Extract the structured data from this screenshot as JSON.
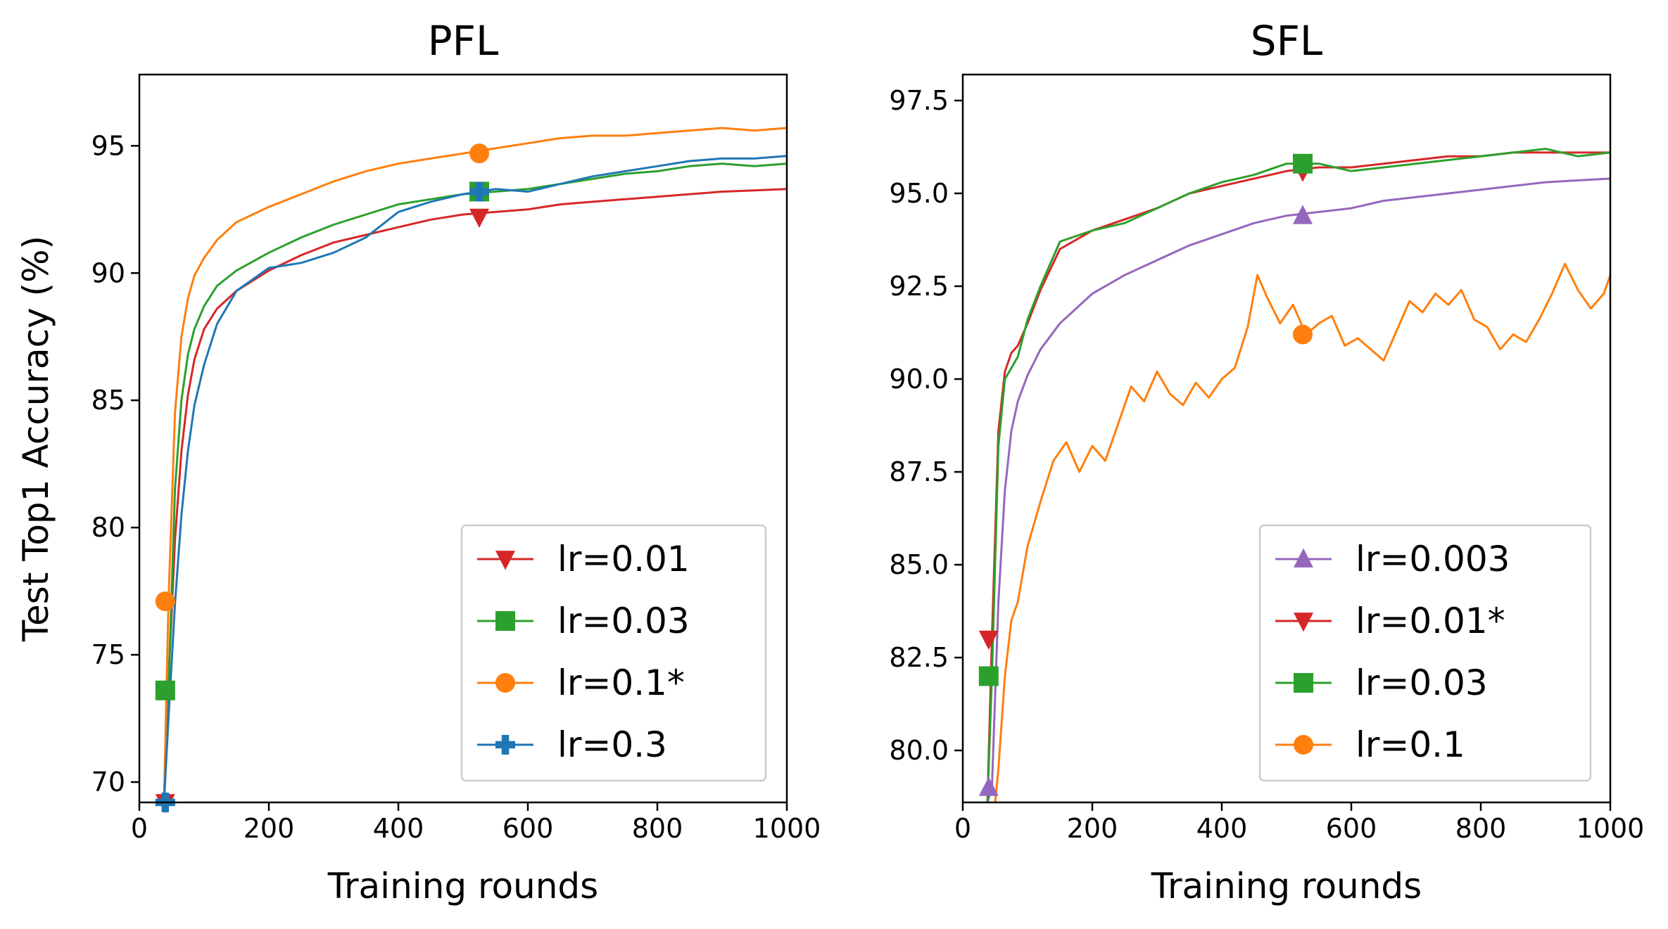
{
  "chart_data": [
    {
      "type": "line",
      "title": "PFL",
      "xlabel": "Training rounds",
      "ylabel": "Test Top1 Accuracy (%)",
      "xlim": [
        0,
        1000
      ],
      "ylim": [
        69.2,
        97.8
      ],
      "xticks": [
        0,
        200,
        400,
        600,
        800,
        1000
      ],
      "xtick_labels": [
        "0",
        "200",
        "400",
        "600",
        "800",
        "1000"
      ],
      "yticks": [
        70,
        75,
        80,
        85,
        90,
        95
      ],
      "ytick_labels": [
        "70",
        "75",
        "80",
        "85",
        "90",
        "95"
      ],
      "legend_position": "lower-right",
      "series": [
        {
          "name": "lr=0.01",
          "color": "#d62728",
          "marker": "triangle-down",
          "marker_points": [
            [
              40,
              69.2
            ],
            [
              525,
              92.2
            ]
          ],
          "x": [
            38,
            45,
            55,
            65,
            75,
            85,
            100,
            120,
            150,
            200,
            250,
            300,
            350,
            400,
            450,
            500,
            550,
            600,
            650,
            700,
            750,
            800,
            850,
            900,
            950,
            1000
          ],
          "y": [
            69.2,
            74.0,
            79.5,
            83.0,
            85.2,
            86.6,
            87.8,
            88.6,
            89.3,
            90.1,
            90.7,
            91.2,
            91.5,
            91.8,
            92.1,
            92.3,
            92.4,
            92.5,
            92.7,
            92.8,
            92.9,
            93.0,
            93.1,
            93.2,
            93.25,
            93.3
          ]
        },
        {
          "name": "lr=0.03",
          "color": "#2ca02c",
          "marker": "square",
          "marker_points": [
            [
              40,
              73.6
            ],
            [
              525,
              93.2
            ]
          ],
          "x": [
            38,
            45,
            55,
            65,
            75,
            85,
            100,
            120,
            150,
            200,
            250,
            300,
            350,
            400,
            450,
            500,
            550,
            600,
            650,
            700,
            750,
            800,
            850,
            900,
            950,
            1000
          ],
          "y": [
            69.2,
            73.6,
            81.5,
            85.0,
            86.8,
            87.8,
            88.7,
            89.5,
            90.1,
            90.8,
            91.4,
            91.9,
            92.3,
            92.7,
            92.9,
            93.1,
            93.2,
            93.3,
            93.5,
            93.7,
            93.9,
            94.0,
            94.2,
            94.3,
            94.2,
            94.3
          ]
        },
        {
          "name": "lr=0.1*",
          "color": "#ff7f0e",
          "marker": "circle",
          "marker_points": [
            [
              40,
              77.1
            ],
            [
              525,
              94.7
            ]
          ],
          "x": [
            38,
            45,
            55,
            65,
            75,
            85,
            100,
            120,
            150,
            200,
            250,
            300,
            350,
            400,
            450,
            500,
            550,
            600,
            650,
            700,
            750,
            800,
            850,
            900,
            950,
            1000
          ],
          "y": [
            69.2,
            77.1,
            84.5,
            87.5,
            89.0,
            89.9,
            90.6,
            91.3,
            92.0,
            92.6,
            93.1,
            93.6,
            94.0,
            94.3,
            94.5,
            94.7,
            94.9,
            95.1,
            95.3,
            95.4,
            95.4,
            95.5,
            95.6,
            95.7,
            95.6,
            95.7
          ]
        },
        {
          "name": "lr=0.3",
          "color": "#1f77b4",
          "marker": "plus",
          "marker_points": [
            [
              40,
              69.2
            ],
            [
              525,
              93.2
            ]
          ],
          "x": [
            38,
            45,
            55,
            65,
            75,
            85,
            100,
            120,
            150,
            200,
            250,
            300,
            350,
            400,
            450,
            500,
            550,
            600,
            650,
            700,
            750,
            800,
            850,
            900,
            950,
            1000
          ],
          "y": [
            69.2,
            72.5,
            77.0,
            80.5,
            83.0,
            84.8,
            86.4,
            88.0,
            89.3,
            90.2,
            90.4,
            90.8,
            91.4,
            92.4,
            92.8,
            93.1,
            93.3,
            93.2,
            93.5,
            93.8,
            94.0,
            94.2,
            94.4,
            94.5,
            94.5,
            94.6
          ]
        }
      ]
    },
    {
      "type": "line",
      "title": "SFL",
      "xlabel": "Training rounds",
      "ylabel": "",
      "xlim": [
        0,
        1000
      ],
      "ylim": [
        78.6,
        98.2
      ],
      "xticks": [
        0,
        200,
        400,
        600,
        800,
        1000
      ],
      "xtick_labels": [
        "0",
        "200",
        "400",
        "600",
        "800",
        "1000"
      ],
      "yticks": [
        80.0,
        82.5,
        85.0,
        87.5,
        90.0,
        92.5,
        95.0,
        97.5
      ],
      "ytick_labels": [
        "80.0",
        "82.5",
        "85.0",
        "87.5",
        "90.0",
        "92.5",
        "95.0",
        "97.5"
      ],
      "legend_position": "lower-right",
      "series": [
        {
          "name": "lr=0.003",
          "color": "#9467bd",
          "marker": "triangle-up",
          "marker_points": [
            [
              40,
              79.0
            ],
            [
              525,
              94.4
            ]
          ],
          "x": [
            38,
            45,
            55,
            65,
            75,
            85,
            100,
            120,
            150,
            200,
            250,
            300,
            350,
            400,
            450,
            500,
            550,
            600,
            650,
            700,
            750,
            800,
            850,
            900,
            950,
            1000
          ],
          "y": [
            78.6,
            79.0,
            84.0,
            87.0,
            88.6,
            89.4,
            90.1,
            90.8,
            91.5,
            92.3,
            92.8,
            93.2,
            93.6,
            93.9,
            94.2,
            94.4,
            94.5,
            94.6,
            94.8,
            94.9,
            95.0,
            95.1,
            95.2,
            95.3,
            95.35,
            95.4
          ]
        },
        {
          "name": "lr=0.01*",
          "color": "#d62728",
          "marker": "triangle-down",
          "marker_points": [
            [
              40,
              83.0
            ],
            [
              525,
              95.6
            ]
          ],
          "x": [
            38,
            45,
            55,
            65,
            75,
            85,
            100,
            120,
            150,
            200,
            250,
            300,
            350,
            400,
            450,
            500,
            550,
            600,
            650,
            700,
            750,
            800,
            850,
            900,
            950,
            1000
          ],
          "y": [
            78.6,
            83.0,
            88.6,
            90.2,
            90.7,
            90.9,
            91.5,
            92.4,
            93.5,
            94.0,
            94.3,
            94.6,
            95.0,
            95.2,
            95.4,
            95.6,
            95.7,
            95.7,
            95.8,
            95.9,
            96.0,
            96.0,
            96.1,
            96.1,
            96.1,
            96.1
          ]
        },
        {
          "name": "lr=0.03",
          "color": "#2ca02c",
          "marker": "square",
          "marker_points": [
            [
              40,
              82.0
            ],
            [
              525,
              95.8
            ]
          ],
          "x": [
            38,
            45,
            55,
            65,
            75,
            85,
            100,
            120,
            150,
            200,
            250,
            300,
            350,
            400,
            450,
            500,
            550,
            600,
            650,
            700,
            750,
            800,
            850,
            900,
            950,
            1000
          ],
          "y": [
            78.6,
            82.0,
            88.2,
            90.0,
            90.3,
            90.6,
            91.6,
            92.5,
            93.7,
            94.0,
            94.2,
            94.6,
            95.0,
            95.3,
            95.5,
            95.8,
            95.8,
            95.6,
            95.7,
            95.8,
            95.9,
            96.0,
            96.1,
            96.2,
            96.0,
            96.1
          ]
        },
        {
          "name": "lr=0.1",
          "color": "#ff7f0e",
          "marker": "circle",
          "marker_points": [
            [
              525,
              91.2
            ]
          ],
          "x": [
            50,
            55,
            65,
            75,
            85,
            100,
            120,
            140,
            160,
            180,
            200,
            220,
            240,
            260,
            280,
            300,
            320,
            340,
            360,
            380,
            400,
            420,
            440,
            455,
            470,
            490,
            510,
            530,
            550,
            570,
            590,
            610,
            630,
            650,
            670,
            690,
            710,
            730,
            750,
            770,
            790,
            810,
            830,
            850,
            870,
            890,
            910,
            930,
            950,
            970,
            990,
            1000
          ],
          "y": [
            78.6,
            79.5,
            82.0,
            83.5,
            84.0,
            85.5,
            86.7,
            87.8,
            88.3,
            87.5,
            88.2,
            87.8,
            88.8,
            89.8,
            89.4,
            90.2,
            89.6,
            89.3,
            89.9,
            89.5,
            90.0,
            90.3,
            91.4,
            92.8,
            92.2,
            91.5,
            92.0,
            91.2,
            91.5,
            91.7,
            90.9,
            91.1,
            90.8,
            90.5,
            91.3,
            92.1,
            91.8,
            92.3,
            92.0,
            92.4,
            91.6,
            91.4,
            90.8,
            91.2,
            91.0,
            91.6,
            92.3,
            93.1,
            92.4,
            91.9,
            92.3,
            92.8
          ]
        }
      ]
    }
  ]
}
